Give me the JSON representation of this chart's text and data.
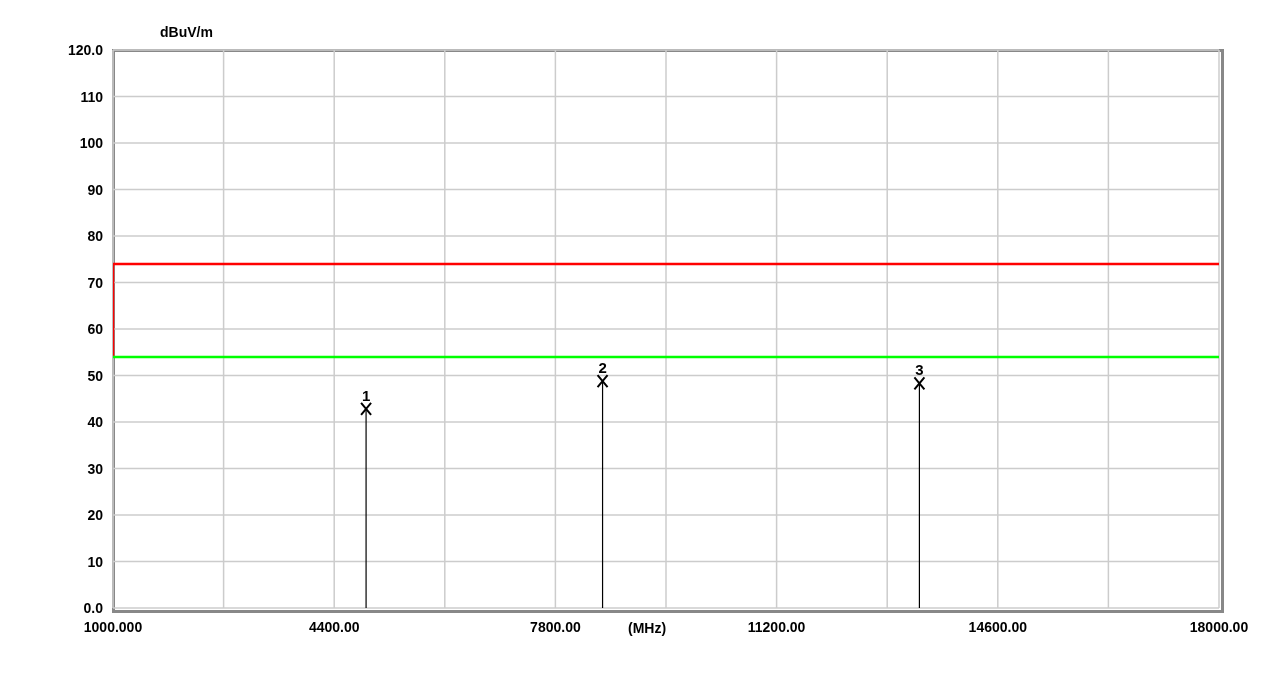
{
  "chart_data": {
    "type": "lollipop",
    "xlabel": "(MHz)",
    "ylabel": "dBuV/m",
    "xlim": [
      1000,
      18000
    ],
    "xticks": [
      {
        "value": 1000,
        "label": "1000.000"
      },
      {
        "value": 2700,
        "label": null
      },
      {
        "value": 4400,
        "label": "4400.00"
      },
      {
        "value": 6100,
        "label": null
      },
      {
        "value": 7800,
        "label": "7800.00"
      },
      {
        "value": 9500,
        "label": null
      },
      {
        "value": 11200,
        "label": "11200.00"
      },
      {
        "value": 12900,
        "label": null
      },
      {
        "value": 14600,
        "label": "14600.00"
      },
      {
        "value": 16300,
        "label": null
      },
      {
        "value": 18000,
        "label": "18000.00"
      }
    ],
    "ylim": [
      0,
      120
    ],
    "yticks": [
      {
        "value": 0,
        "label": "0.0"
      },
      10,
      20,
      30,
      40,
      50,
      60,
      70,
      80,
      90,
      100,
      110,
      {
        "value": 120,
        "label": "120.0"
      }
    ],
    "grid": true,
    "series": [
      {
        "type": "line",
        "color": "#ff0000",
        "x": [
          1000,
          1000,
          18000
        ],
        "values": [
          54,
          74,
          74
        ]
      },
      {
        "type": "line",
        "color": "#00ff00",
        "x": [
          1000,
          18000
        ],
        "values": [
          54,
          54
        ]
      },
      {
        "type": "lollipop",
        "color": "#000000",
        "marker": "cross",
        "x": [
          4890,
          8525,
          13395
        ],
        "values": [
          42.8,
          48.8,
          48.3
        ]
      }
    ],
    "annotations": [
      {
        "text": "1",
        "x": 4890,
        "y": 42.8
      },
      {
        "text": "2",
        "x": 8525,
        "y": 48.8
      },
      {
        "text": "3",
        "x": 13395,
        "y": 48.3
      }
    ]
  }
}
